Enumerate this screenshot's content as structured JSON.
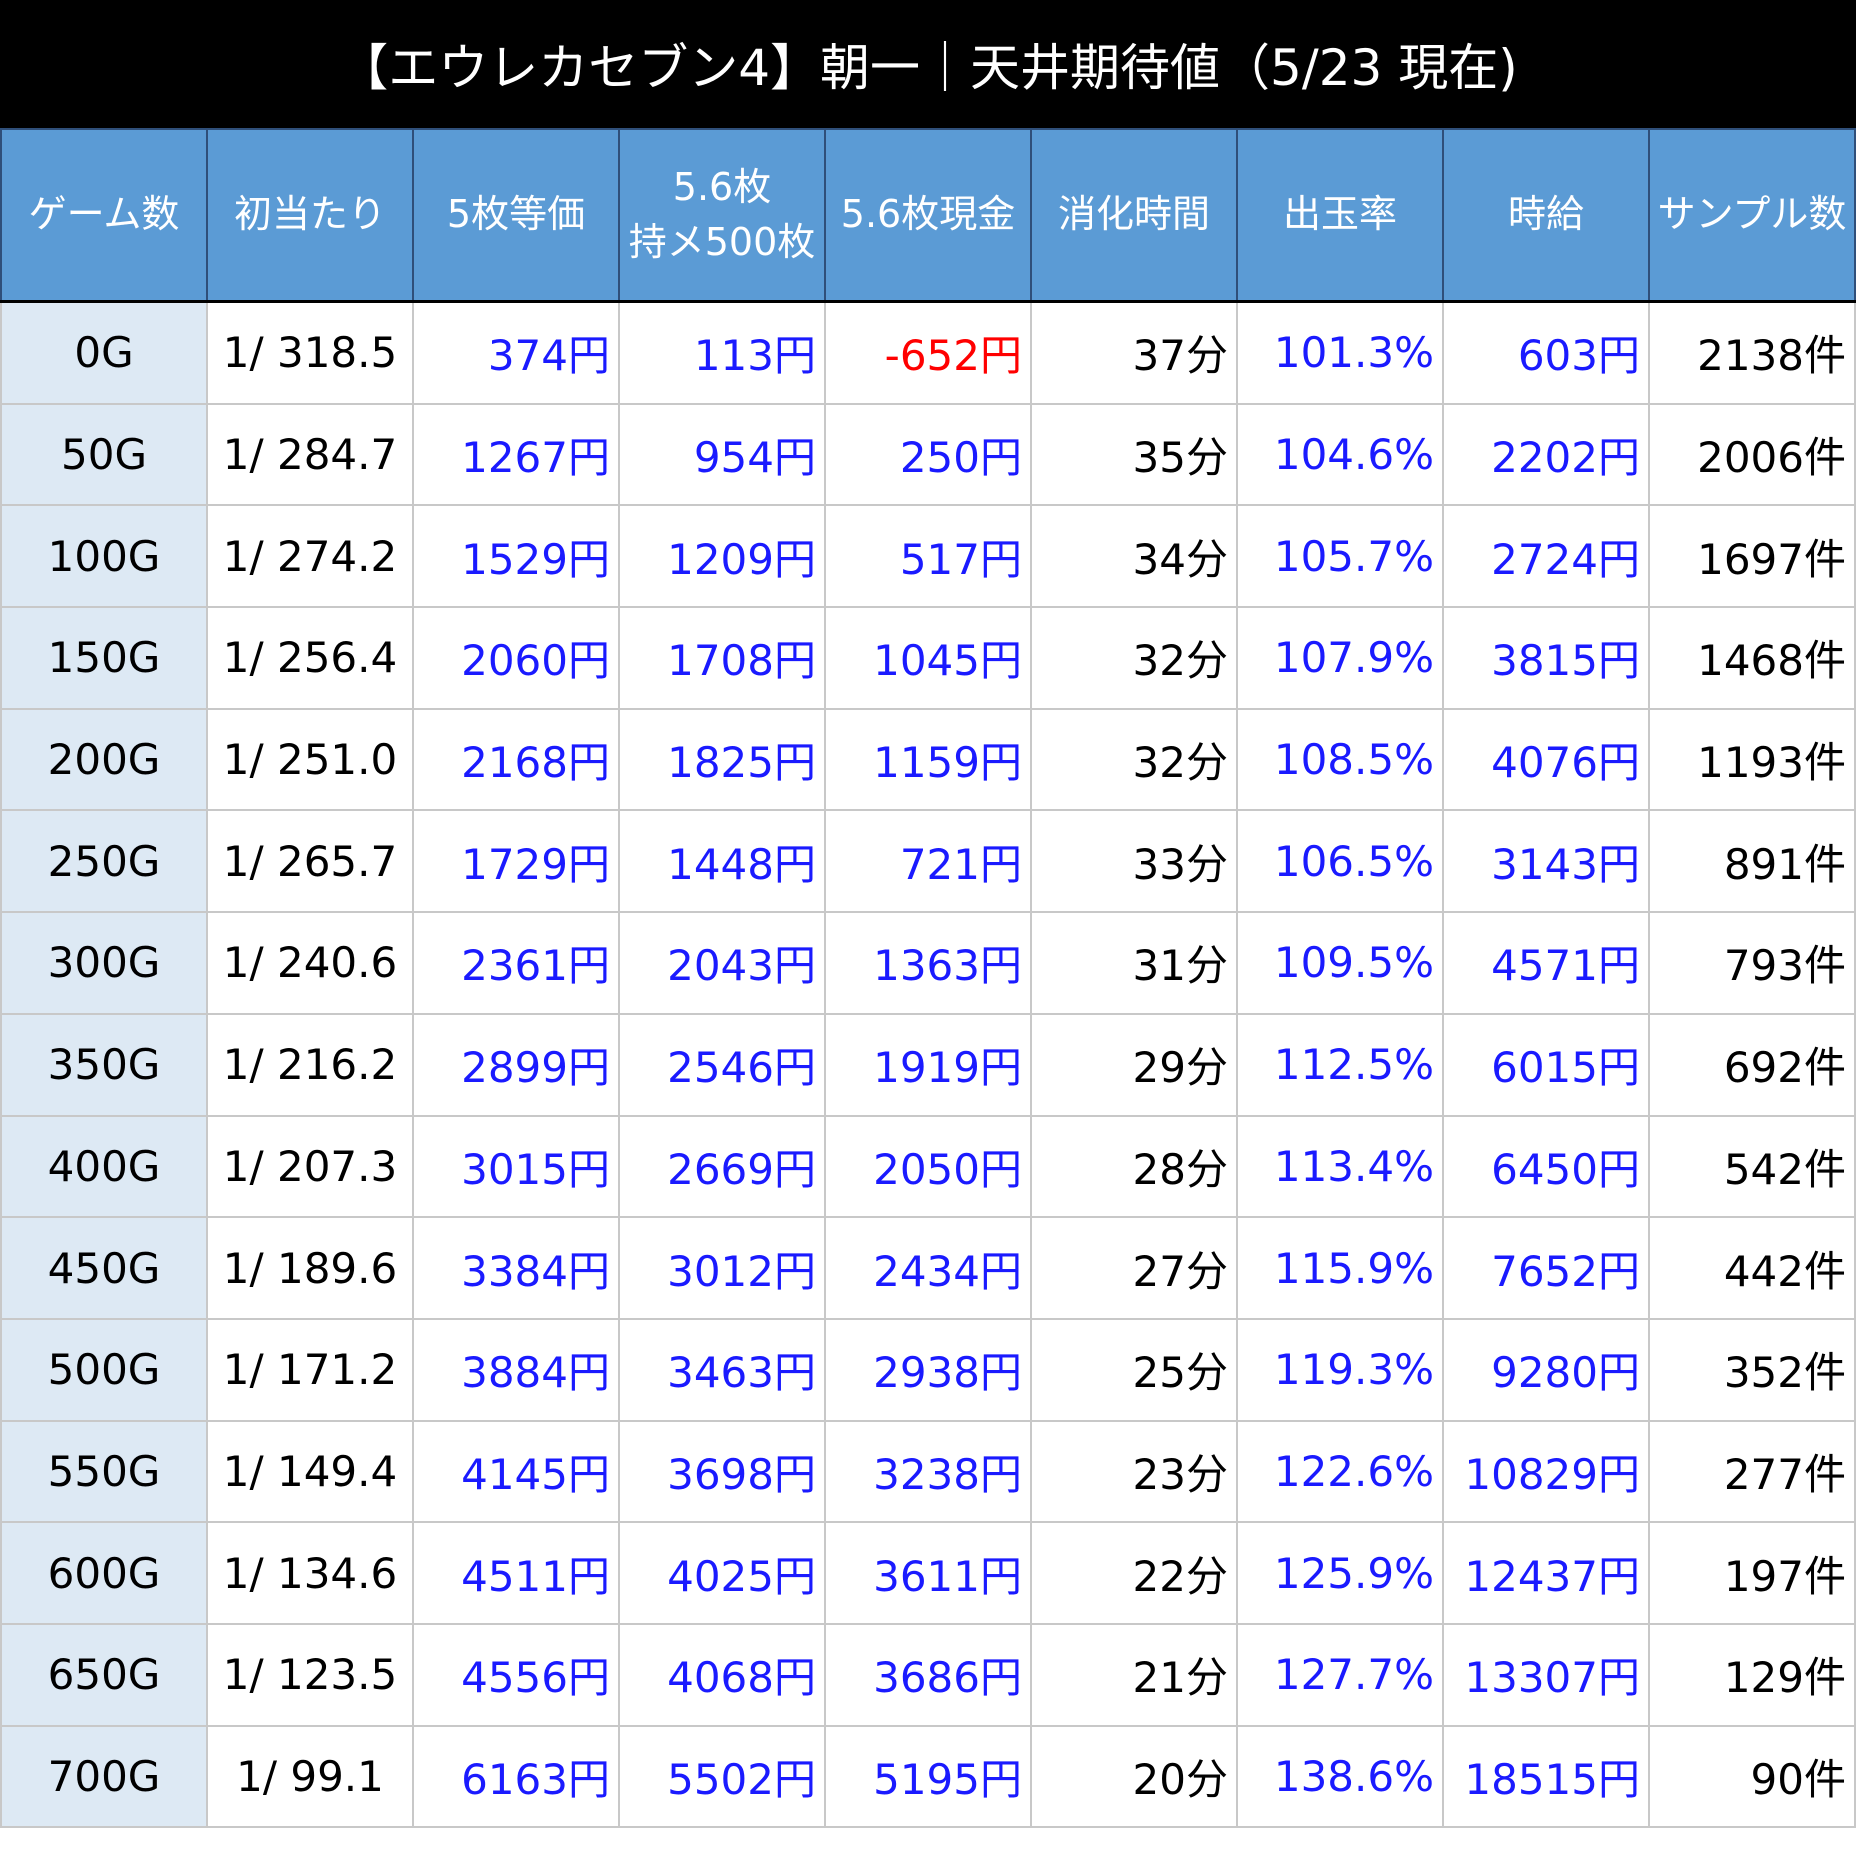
{
  "header": {
    "title": "【エウレカセブン4】朝一｜天井期待値（5/23 現在)"
  },
  "table": {
    "columns": [
      "ゲーム数",
      "初当たり",
      "5枚等価",
      "5.6枚\n持メ500枚",
      "5.6枚現金",
      "消化時間",
      "出玉率",
      "時給",
      "サンプル数"
    ],
    "rows": [
      [
        "0G",
        "1/ 318.5",
        "374円",
        "113円",
        "-652円",
        "37分",
        "101.3%",
        "603円",
        "2138件"
      ],
      [
        "50G",
        "1/ 284.7",
        "1267円",
        "954円",
        "250円",
        "35分",
        "104.6%",
        "2202円",
        "2006件"
      ],
      [
        "100G",
        "1/ 274.2",
        "1529円",
        "1209円",
        "517円",
        "34分",
        "105.7%",
        "2724円",
        "1697件"
      ],
      [
        "150G",
        "1/ 256.4",
        "2060円",
        "1708円",
        "1045円",
        "32分",
        "107.9%",
        "3815円",
        "1468件"
      ],
      [
        "200G",
        "1/ 251.0",
        "2168円",
        "1825円",
        "1159円",
        "32分",
        "108.5%",
        "4076円",
        "1193件"
      ],
      [
        "250G",
        "1/ 265.7",
        "1729円",
        "1448円",
        "721円",
        "33分",
        "106.5%",
        "3143円",
        "891件"
      ],
      [
        "300G",
        "1/ 240.6",
        "2361円",
        "2043円",
        "1363円",
        "31分",
        "109.5%",
        "4571円",
        "793件"
      ],
      [
        "350G",
        "1/ 216.2",
        "2899円",
        "2546円",
        "1919円",
        "29分",
        "112.5%",
        "6015円",
        "692件"
      ],
      [
        "400G",
        "1/ 207.3",
        "3015円",
        "2669円",
        "2050円",
        "28分",
        "113.4%",
        "6450円",
        "542件"
      ],
      [
        "450G",
        "1/ 189.6",
        "3384円",
        "3012円",
        "2434円",
        "27分",
        "115.9%",
        "7652円",
        "442件"
      ],
      [
        "500G",
        "1/ 171.2",
        "3884円",
        "3463円",
        "2938円",
        "25分",
        "119.3%",
        "9280円",
        "352件"
      ],
      [
        "550G",
        "1/ 149.4",
        "4145円",
        "3698円",
        "3238円",
        "23分",
        "122.6%",
        "10829円",
        "277件"
      ],
      [
        "600G",
        "1/ 134.6",
        "4511円",
        "4025円",
        "3611円",
        "22分",
        "125.9%",
        "12437円",
        "197件"
      ],
      [
        "650G",
        "1/ 123.5",
        "4556円",
        "4068円",
        "3686円",
        "21分",
        "127.7%",
        "13307円",
        "129件"
      ],
      [
        "700G",
        "1/ 99.1",
        "6163円",
        "5502円",
        "5195円",
        "20分",
        "138.6%",
        "18515円",
        "90件"
      ]
    ]
  }
}
